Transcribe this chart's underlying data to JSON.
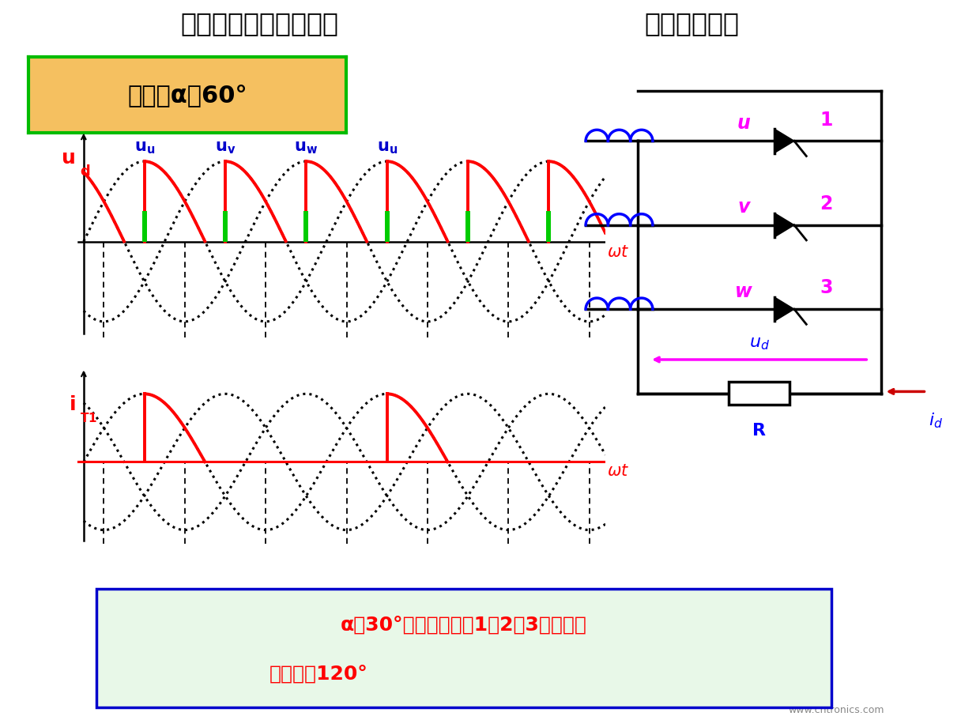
{
  "title_left": "三相半波可控整流电路",
  "title_right": "纯电阻性负载",
  "title_bg": "#b8bcd4",
  "control_angle_text": "控制角α＝60°",
  "alpha_deg": 60,
  "bottom_text_line1": "α＞30°时电流断续，1、2、3晶闸管导",
  "bottom_text_line2": "通角小于120°",
  "bg_color": "#ffffff",
  "wave_dotted_color": "#000000",
  "wave_red_color": "#ff0000",
  "wave_green_color": "#00bb00",
  "label_blue": "#0000cc",
  "circuit_wire_color": "#0000cc",
  "circuit_label_color": "#ff00ff",
  "circuit_id_color": "#cc0000"
}
